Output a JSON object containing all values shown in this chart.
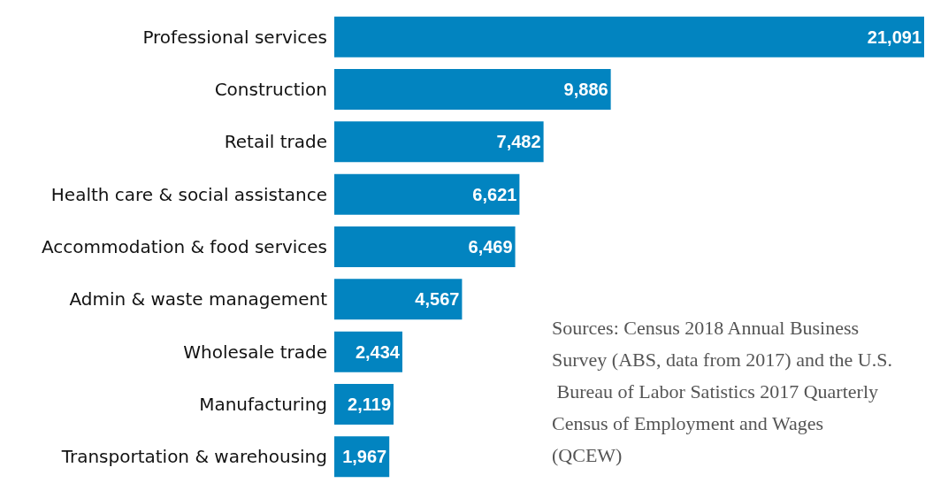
{
  "chart_data": {
    "type": "bar",
    "orientation": "horizontal",
    "categories": [
      "Professional services",
      "Construction",
      "Retail trade",
      "Health care & social assistance",
      "Accommodation & food services",
      "Admin & waste management",
      "Wholesale trade",
      "Manufacturing",
      "Transportation & warehousing"
    ],
    "values": [
      21091,
      9886,
      7482,
      6621,
      6469,
      4567,
      2434,
      2119,
      1967
    ],
    "value_labels": [
      "21,091",
      "9,886",
      "7,482",
      "6,621",
      "6,469",
      "4,567",
      "2,434",
      "2,119",
      "1,967"
    ],
    "color": "#0284c0",
    "annotations": [
      "Sources: Census 2018 Annual Business Survey (ABS, data from 2017) and the U.S. Bureau of Labor Satistics 2017 Quarterly Census of Employment and Wages (QCEW)"
    ]
  }
}
